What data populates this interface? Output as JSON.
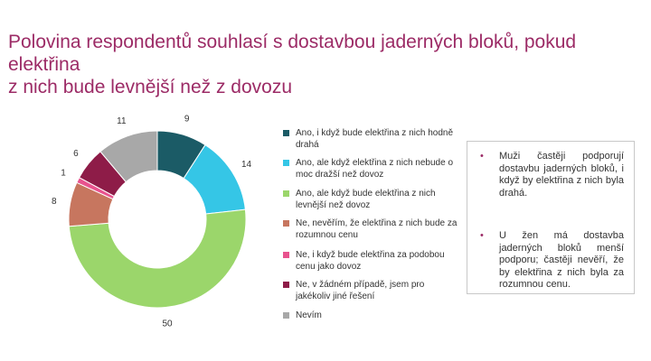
{
  "title": {
    "line1": "Polovina respondentů souhlasí s dostavbou jaderných bloků, pokud elektřina",
    "line2": "z nich bude levnější než z dovozu"
  },
  "chart_data": {
    "type": "pie",
    "title": "Polovina respondentů souhlasí s dostavbou jaderných bloků, pokud elektřina z nich bude levnější než z dovozu",
    "slices": [
      {
        "label": "Ano, i když bude elektřina z nich hodně drahá",
        "value": 9,
        "color": "#1b5b66"
      },
      {
        "label": "Ano, ale když elektřina z nich nebude o moc dražší než dovoz",
        "value": 14,
        "color": "#35c6e6"
      },
      {
        "label": "Ano, ale když bude elektřina z nich levnější než dovoz",
        "value": 50,
        "color": "#9bd66b"
      },
      {
        "label": "Ne, nevěřím, že elektřina z nich bude za rozumnou cenu",
        "value": 8,
        "color": "#c7765f"
      },
      {
        "label": "Ne, i když bude elektřina za podobou cenu jako dovoz",
        "value": 1,
        "color": "#e8538e"
      },
      {
        "label": "Ne, v žádném případě, jsem pro jakékoliv jiné řešení",
        "value": 6,
        "color": "#8e1c48"
      },
      {
        "label": "Nevím",
        "value": 11,
        "color": "#a8a8a8"
      }
    ],
    "legend_position": "right"
  },
  "notes": [
    "Muži častěji podporují dostavbu jaderných bloků, i když by elektřina z nich byla drahá.",
    "U žen má dostavba jaderných bloků menší podporu; častěji nevěří, že by elektřina z nich byla za rozumnou cenu."
  ]
}
